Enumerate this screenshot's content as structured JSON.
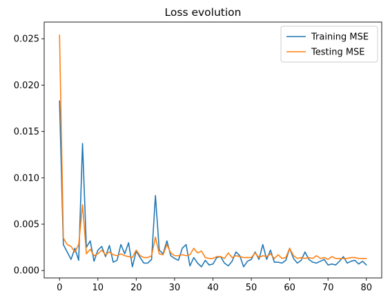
{
  "chart_data": {
    "type": "line",
    "title": "Loss evolution",
    "xlabel": "",
    "ylabel": "",
    "xlim": [
      -4,
      84
    ],
    "ylim": [
      -0.0008,
      0.0268
    ],
    "xticks": [
      0,
      10,
      20,
      30,
      40,
      50,
      60,
      70,
      80
    ],
    "yticks": [
      0.0,
      0.005,
      0.01,
      0.015,
      0.02,
      0.025
    ],
    "ytick_labels": [
      "0.000",
      "0.005",
      "0.010",
      "0.015",
      "0.020",
      "0.025"
    ],
    "grid": false,
    "legend_position": "top-right",
    "series": [
      {
        "name": "Training MSE",
        "color": "#1f77b4",
        "x": [
          0,
          1,
          2,
          3,
          4,
          5,
          6,
          7,
          8,
          9,
          10,
          11,
          12,
          13,
          14,
          15,
          16,
          17,
          18,
          19,
          20,
          21,
          22,
          23,
          24,
          25,
          26,
          27,
          28,
          29,
          30,
          31,
          32,
          33,
          34,
          35,
          36,
          37,
          38,
          39,
          40,
          41,
          42,
          43,
          44,
          45,
          46,
          47,
          48,
          49,
          50,
          51,
          52,
          53,
          54,
          55,
          56,
          57,
          58,
          59,
          60,
          61,
          62,
          63,
          64,
          65,
          66,
          67,
          68,
          69,
          70,
          71,
          72,
          73,
          74,
          75,
          76,
          77,
          78,
          79,
          80
        ],
        "values": [
          0.0183,
          0.0028,
          0.002,
          0.0012,
          0.0024,
          0.0011,
          0.0137,
          0.0025,
          0.0032,
          0.001,
          0.0022,
          0.0026,
          0.0015,
          0.0027,
          0.0009,
          0.0011,
          0.0028,
          0.0018,
          0.003,
          0.0004,
          0.0021,
          0.0014,
          0.0008,
          0.0008,
          0.0012,
          0.0081,
          0.0022,
          0.0018,
          0.0032,
          0.0016,
          0.0013,
          0.0011,
          0.0024,
          0.0028,
          0.0005,
          0.0014,
          0.0008,
          0.0004,
          0.0011,
          0.0006,
          0.0007,
          0.0014,
          0.0015,
          0.0008,
          0.0005,
          0.001,
          0.002,
          0.0016,
          0.0004,
          0.001,
          0.0012,
          0.002,
          0.0012,
          0.0028,
          0.0012,
          0.0022,
          0.0009,
          0.0009,
          0.0008,
          0.0011,
          0.0024,
          0.0013,
          0.0008,
          0.0011,
          0.002,
          0.0012,
          0.0009,
          0.0008,
          0.001,
          0.0012,
          0.0006,
          0.0007,
          0.0006,
          0.001,
          0.0015,
          0.0008,
          0.001,
          0.0011,
          0.0007,
          0.001,
          0.0006
        ]
      },
      {
        "name": "Testing MSE",
        "color": "#ff7f0e",
        "x": [
          0,
          1,
          2,
          3,
          4,
          5,
          6,
          7,
          8,
          9,
          10,
          11,
          12,
          13,
          14,
          15,
          16,
          17,
          18,
          19,
          20,
          21,
          22,
          23,
          24,
          25,
          26,
          27,
          28,
          29,
          30,
          31,
          32,
          33,
          34,
          35,
          36,
          37,
          38,
          39,
          40,
          41,
          42,
          43,
          44,
          45,
          46,
          47,
          48,
          49,
          50,
          51,
          52,
          53,
          54,
          55,
          56,
          57,
          58,
          59,
          60,
          61,
          62,
          63,
          64,
          65,
          66,
          67,
          68,
          69,
          70,
          71,
          72,
          73,
          74,
          75,
          76,
          77,
          78,
          79,
          80
        ],
        "values": [
          0.0254,
          0.0035,
          0.0028,
          0.0026,
          0.002,
          0.0028,
          0.0071,
          0.0018,
          0.0023,
          0.0016,
          0.0018,
          0.0022,
          0.0017,
          0.002,
          0.0017,
          0.0016,
          0.0018,
          0.0016,
          0.0015,
          0.0014,
          0.0022,
          0.0016,
          0.0014,
          0.0014,
          0.0016,
          0.0036,
          0.0018,
          0.0017,
          0.0028,
          0.0019,
          0.0016,
          0.0016,
          0.0017,
          0.0016,
          0.0017,
          0.0024,
          0.0019,
          0.0021,
          0.0014,
          0.0013,
          0.0013,
          0.0015,
          0.0015,
          0.0013,
          0.0019,
          0.0014,
          0.0016,
          0.0015,
          0.0014,
          0.0014,
          0.0014,
          0.0019,
          0.0014,
          0.0016,
          0.0015,
          0.0018,
          0.0013,
          0.0017,
          0.0013,
          0.0014,
          0.0024,
          0.0016,
          0.0013,
          0.0014,
          0.0013,
          0.0014,
          0.0013,
          0.0016,
          0.0013,
          0.0014,
          0.0012,
          0.0015,
          0.0013,
          0.0013,
          0.0013,
          0.0013,
          0.0014,
          0.0014,
          0.0013,
          0.0013,
          0.0013
        ]
      }
    ]
  }
}
